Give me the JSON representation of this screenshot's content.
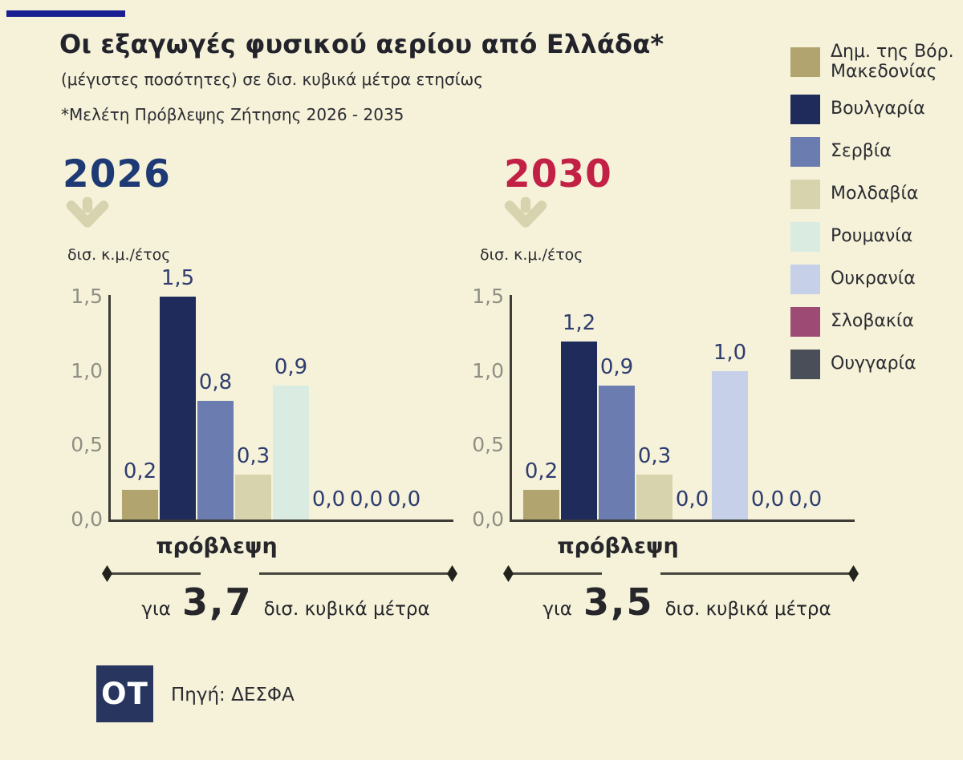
{
  "colors": {
    "background": "#f5f2d9",
    "accent_bar": "#1b1e92",
    "axis": "#3d3d35",
    "tick_label": "#8f8f83",
    "value_label": "#2e3c70",
    "arrow": "#d7d3ae",
    "forecast_line": "#45453c",
    "logo_bg": "#28355f"
  },
  "header": {
    "title": "Οι εξαγωγές φυσικού αερίου από Ελλάδα*",
    "subtitle": "(μέγιστες ποσότητες) σε δισ. κυβικά μέτρα ετησίως",
    "footnote": "*Μελέτη Πρόβλεψης Ζήτησης 2026 - 2035"
  },
  "legend": {
    "items": [
      {
        "label": "Δημ. της Βόρ. Μακεδονίας",
        "color": "#b1a46f"
      },
      {
        "label": "Βουλγαρία",
        "color": "#1e2b5b"
      },
      {
        "label": "Σερβία",
        "color": "#6b7cb0"
      },
      {
        "label": "Μολδαβία",
        "color": "#d7d3ac"
      },
      {
        "label": "Ρουμανία",
        "color": "#daece2"
      },
      {
        "label": "Ουκρανία",
        "color": "#c6d1e9"
      },
      {
        "label": "Σλοβακία",
        "color": "#9d4a74"
      },
      {
        "label": "Ουγγαρία",
        "color": "#494e58"
      }
    ]
  },
  "chart_data": [
    {
      "type": "bar",
      "title": "2026",
      "title_color": "#1e3a74",
      "unit": "δισ. κ.μ./έτος",
      "xlabel": "",
      "ylabel": "δισ. κ.μ./έτος",
      "ylim": [
        0,
        1.5
      ],
      "grid": false,
      "legend_position": "right",
      "categories": [
        "Δημ. της Βόρ. Μακεδονίας",
        "Βουλγαρία",
        "Σερβία",
        "Μολδαβία",
        "Ρουμανία",
        "Ουκρανία",
        "Σλοβακία",
        "Ουγγαρία"
      ],
      "values": [
        0.2,
        1.5,
        0.8,
        0.3,
        0.9,
        0.0,
        0.0,
        0.0
      ],
      "value_labels": [
        "0,2",
        "1,5",
        "0,8",
        "0,3",
        "0,9",
        "0,0",
        "0,0",
        "0,0"
      ],
      "yticks_values": [
        0,
        0.5,
        1.0,
        1.5
      ],
      "ytick_labels": [
        "0,0",
        "0,5",
        "1,0",
        "1,5"
      ],
      "forecast": {
        "label": "πρόβλεψη",
        "prefix": "για",
        "value": "3,7",
        "suffix": "δισ. κυβικά μέτρα"
      }
    },
    {
      "type": "bar",
      "title": "2030",
      "title_color": "#c22045",
      "unit": "δισ. κ.μ./έτος",
      "xlabel": "",
      "ylabel": "δισ. κ.μ./έτος",
      "ylim": [
        0,
        1.5
      ],
      "grid": false,
      "legend_position": "right",
      "categories": [
        "Δημ. της Βόρ. Μακεδονίας",
        "Βουλγαρία",
        "Σερβία",
        "Μολδαβία",
        "Ρουμανία",
        "Ουκρανία",
        "Σλοβακία",
        "Ουγγαρία"
      ],
      "values": [
        0.2,
        1.2,
        0.9,
        0.3,
        0.0,
        1.0,
        0.0,
        0.0
      ],
      "value_labels": [
        "0,2",
        "1,2",
        "0,9",
        "0,3",
        "0,0",
        "1,0",
        "0,0",
        "0,0"
      ],
      "yticks_values": [
        0,
        0.5,
        1.0,
        1.5
      ],
      "ytick_labels": [
        "0,0",
        "0,5",
        "1,0",
        "1,5"
      ],
      "forecast": {
        "label": "πρόβλεψη",
        "prefix": "για",
        "value": "3,5",
        "suffix": "δισ. κυβικά μέτρα"
      }
    }
  ],
  "footer": {
    "logo": "OT",
    "source": "Πηγή: ΔΕΣΦΑ"
  }
}
